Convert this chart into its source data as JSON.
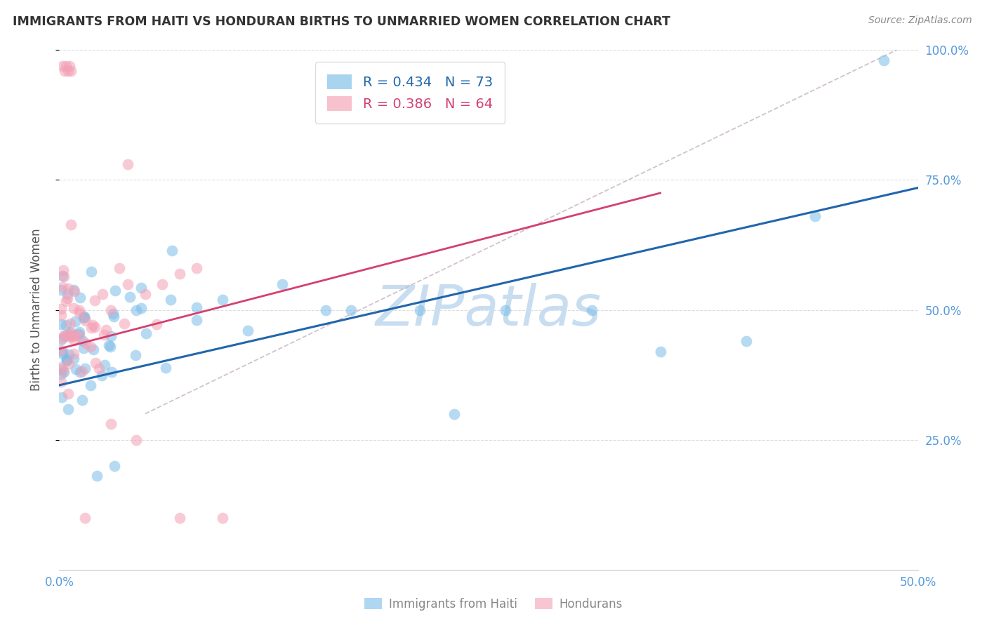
{
  "title": "IMMIGRANTS FROM HAITI VS HONDURAN BIRTHS TO UNMARRIED WOMEN CORRELATION CHART",
  "source": "Source: ZipAtlas.com",
  "ylabel": "Births to Unmarried Women",
  "xlim": [
    0,
    0.5
  ],
  "ylim": [
    0,
    1.0
  ],
  "xtick_positions": [
    0.0,
    0.1,
    0.2,
    0.3,
    0.4,
    0.5
  ],
  "xtick_labels": [
    "0.0%",
    "",
    "",
    "",
    "",
    "50.0%"
  ],
  "ytick_vals": [
    0.25,
    0.5,
    0.75,
    1.0
  ],
  "ytick_labels_right": [
    "25.0%",
    "50.0%",
    "75.0%",
    "100.0%"
  ],
  "legend1_r": "0.434",
  "legend1_n": "73",
  "legend2_r": "0.386",
  "legend2_n": "64",
  "scatter_blue_color": "#7bbde8",
  "scatter_pink_color": "#f4a0b5",
  "line_blue_color": "#2166ac",
  "line_pink_color": "#d44070",
  "dashed_line_color": "#c8b8c8",
  "watermark": "ZIPatlas",
  "watermark_color": "#c8ddf0",
  "background_color": "#ffffff",
  "grid_color": "#dddddd",
  "right_axis_color": "#5599dd",
  "title_color": "#333333",
  "source_color": "#888888",
  "axis_label_color": "#555555",
  "tick_color": "#5599dd",
  "blue_line_x0": 0.0,
  "blue_line_y0": 0.355,
  "blue_line_x1": 0.5,
  "blue_line_y1": 0.735,
  "pink_line_x0": 0.0,
  "pink_line_y0": 0.425,
  "pink_line_x1": 0.35,
  "pink_line_y1": 0.725,
  "dash_line_x0": 0.05,
  "dash_line_y0": 0.3,
  "dash_line_x1": 0.5,
  "dash_line_y1": 1.02
}
